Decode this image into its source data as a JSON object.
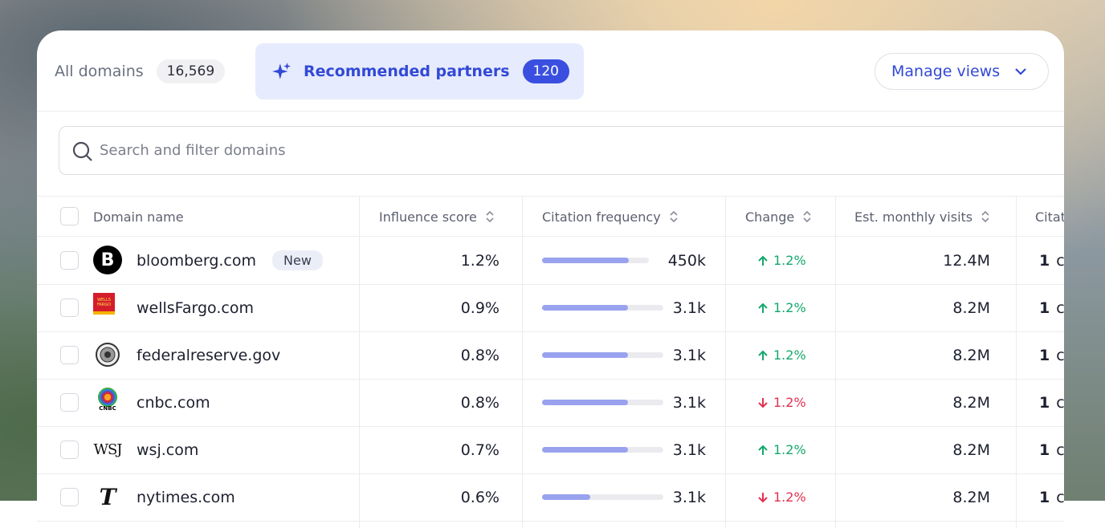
{
  "tabs": [
    {
      "label": "All domains",
      "count": "16,569",
      "active": false
    },
    {
      "label": "Recommended partners",
      "count": "120",
      "active": true
    }
  ],
  "manage_views": "Manage views",
  "search_placeholder": "Search and filter domains",
  "table": {
    "columns": [
      "Domain name",
      "Influence score",
      "Citation frequency",
      "Change",
      "Est. monthly visits",
      "Citations"
    ],
    "rows": [
      {
        "logo": "B",
        "domain": "bloomberg.com",
        "badge": "New",
        "influence": "1.2%",
        "frequency_bar": 81,
        "frequency": "450k",
        "trend": "up",
        "change": "1.2%",
        "visits": "12.4M",
        "citations_count": "1",
        "citations_unit": "citation"
      },
      {
        "logo": "WELLS FARGO",
        "domain": "wellsFargo.com",
        "influence": "0.9%",
        "frequency_bar": 71,
        "frequency": "3.1k",
        "trend": "up",
        "change": "1.2%",
        "visits": "8.2M",
        "citations_count": "1",
        "citations_unit": "citation"
      },
      {
        "domain": "federalreserve.gov",
        "influence": "0.8%",
        "frequency_bar": 71,
        "frequency": "3.1k",
        "trend": "up",
        "change": "1.2%",
        "visits": "8.2M",
        "citations_count": "1",
        "citations_unit": "citation"
      },
      {
        "logo": "CNBC",
        "domain": "cnbc.com",
        "influence": "0.8%",
        "frequency_bar": 71,
        "frequency": "3.1k",
        "trend": "down",
        "change": "1.2%",
        "visits": "8.2M",
        "citations_count": "1",
        "citations_unit": "citation"
      },
      {
        "logo": "WSJ",
        "domain": "wsj.com",
        "influence": "0.7%",
        "frequency_bar": 71,
        "frequency": "3.1k",
        "trend": "up",
        "change": "1.2%",
        "visits": "8.2M",
        "citations_count": "1",
        "citations_unit": "citation"
      },
      {
        "logo": "T",
        "domain": "nytimes.com",
        "influence": "0.6%",
        "frequency_bar": 40,
        "frequency": "3.1k",
        "trend": "down",
        "change": "1.2%",
        "visits": "8.2M",
        "citations_count": "1",
        "citations_unit": "citation"
      }
    ]
  }
}
